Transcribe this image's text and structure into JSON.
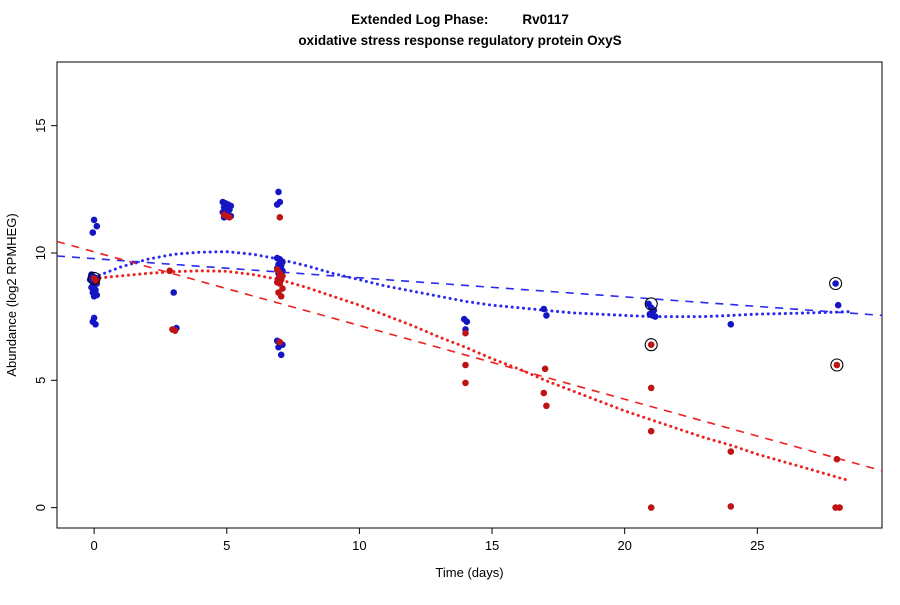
{
  "title": {
    "line1_left": "Extended Log Phase:",
    "line1_right": "Rv0117",
    "line2": "oxidative stress response regulatory protein OxyS"
  },
  "colors": {
    "blue_points": "#1515c4",
    "red_points": "#c01414",
    "blue_line": "#2a2aee",
    "red_line": "#ee2020",
    "outlier_ring": "#000000",
    "axis": "#000000"
  },
  "chart_data": {
    "type": "scatter",
    "title": "Extended Log Phase:  Rv0117",
    "subtitle": "oxidative stress response regulatory protein OxyS",
    "xlabel": "Time  (days)",
    "ylabel": "Abundance  (log2 RPMHEG)",
    "xlim": [
      -1.4,
      29.7
    ],
    "ylim": [
      -0.8,
      17.5
    ],
    "xticks": [
      0,
      5,
      10,
      15,
      20,
      25
    ],
    "yticks": [
      0,
      5,
      10,
      15
    ],
    "grid": false,
    "legend": "none",
    "series": [
      {
        "name": "blue-linear-fit",
        "type": "dashed-line",
        "color": "#2a2aee",
        "points": [
          [
            -1.4,
            9.88
          ],
          [
            29.7,
            7.55
          ]
        ]
      },
      {
        "name": "red-linear-fit",
        "type": "dashed-line",
        "color": "#ee2020",
        "points": [
          [
            -1.4,
            10.45
          ],
          [
            29.7,
            1.45
          ]
        ]
      },
      {
        "name": "blue-smooth-fit",
        "type": "dotted-curve",
        "color": "#2a2aee",
        "points": [
          [
            -0.2,
            8.95
          ],
          [
            0,
            9.05
          ],
          [
            1,
            9.45
          ],
          [
            2,
            9.75
          ],
          [
            3,
            9.95
          ],
          [
            4,
            10.03
          ],
          [
            5,
            10.05
          ],
          [
            6,
            9.95
          ],
          [
            7,
            9.75
          ],
          [
            8,
            9.5
          ],
          [
            9,
            9.2
          ],
          [
            10,
            8.95
          ],
          [
            11,
            8.7
          ],
          [
            12,
            8.5
          ],
          [
            13,
            8.3
          ],
          [
            14,
            8.1
          ],
          [
            15,
            7.95
          ],
          [
            16,
            7.85
          ],
          [
            17,
            7.75
          ],
          [
            18,
            7.65
          ],
          [
            19,
            7.6
          ],
          [
            20,
            7.55
          ],
          [
            21,
            7.5
          ],
          [
            22,
            7.5
          ],
          [
            23,
            7.5
          ],
          [
            24,
            7.55
          ],
          [
            25,
            7.6
          ],
          [
            26,
            7.62
          ],
          [
            27,
            7.65
          ],
          [
            28,
            7.68
          ],
          [
            28.5,
            7.7
          ]
        ]
      },
      {
        "name": "red-smooth-fit",
        "type": "dotted-curve",
        "color": "#ee2020",
        "points": [
          [
            -0.2,
            8.95
          ],
          [
            0,
            9.0
          ],
          [
            1,
            9.1
          ],
          [
            2,
            9.2
          ],
          [
            3,
            9.27
          ],
          [
            4,
            9.3
          ],
          [
            5,
            9.28
          ],
          [
            6,
            9.15
          ],
          [
            7,
            8.95
          ],
          [
            8,
            8.65
          ],
          [
            9,
            8.3
          ],
          [
            10,
            7.95
          ],
          [
            11,
            7.55
          ],
          [
            12,
            7.15
          ],
          [
            13,
            6.7
          ],
          [
            14,
            6.3
          ],
          [
            15,
            5.85
          ],
          [
            16,
            5.45
          ],
          [
            17,
            5.0
          ],
          [
            18,
            4.6
          ],
          [
            19,
            4.2
          ],
          [
            20,
            3.8
          ],
          [
            21,
            3.45
          ],
          [
            22,
            3.1
          ],
          [
            23,
            2.75
          ],
          [
            24,
            2.45
          ],
          [
            25,
            2.1
          ],
          [
            26,
            1.8
          ],
          [
            27,
            1.5
          ],
          [
            28,
            1.2
          ],
          [
            28.5,
            1.05
          ]
        ]
      },
      {
        "name": "blue-points",
        "type": "points",
        "color": "#1515c4",
        "points": [
          [
            0,
            11.3
          ],
          [
            0.1,
            11.05
          ],
          [
            -0.05,
            10.8
          ],
          [
            -0.1,
            9.15
          ],
          [
            0,
            9.05
          ],
          [
            0.1,
            9.0
          ],
          [
            -0.15,
            8.95
          ],
          [
            0.05,
            8.9
          ],
          [
            -0.05,
            8.85
          ],
          [
            0.1,
            8.8
          ],
          [
            0,
            8.75
          ],
          [
            -0.1,
            8.65
          ],
          [
            0.05,
            8.55
          ],
          [
            -0.05,
            8.45
          ],
          [
            0.1,
            8.35
          ],
          [
            0,
            8.3
          ],
          [
            0,
            7.45
          ],
          [
            -0.05,
            7.3
          ],
          [
            0.05,
            7.2
          ],
          [
            3.0,
            8.45
          ],
          [
            3.1,
            7.05
          ],
          [
            4.85,
            12.0
          ],
          [
            4.95,
            11.95
          ],
          [
            5.05,
            11.9
          ],
          [
            5.15,
            11.85
          ],
          [
            4.9,
            11.8
          ],
          [
            5.0,
            11.75
          ],
          [
            5.1,
            11.7
          ],
          [
            4.85,
            11.6
          ],
          [
            4.95,
            11.55
          ],
          [
            5.05,
            11.5
          ],
          [
            5.15,
            11.45
          ],
          [
            4.9,
            11.4
          ],
          [
            6.95,
            12.4
          ],
          [
            7.0,
            12.0
          ],
          [
            6.9,
            11.9
          ],
          [
            6.9,
            9.8
          ],
          [
            7.0,
            9.75
          ],
          [
            7.1,
            9.65
          ],
          [
            6.95,
            9.55
          ],
          [
            7.05,
            9.5
          ],
          [
            6.9,
            9.4
          ],
          [
            7.0,
            9.35
          ],
          [
            7.1,
            9.3
          ],
          [
            6.95,
            9.2
          ],
          [
            6.9,
            6.55
          ],
          [
            7.0,
            6.45
          ],
          [
            7.1,
            6.4
          ],
          [
            6.95,
            6.3
          ],
          [
            7.05,
            6.0
          ],
          [
            13.95,
            7.4
          ],
          [
            14.05,
            7.3
          ],
          [
            14.0,
            7.0
          ],
          [
            16.95,
            7.8
          ],
          [
            17.05,
            7.55
          ],
          [
            20.9,
            8.0
          ],
          [
            21.0,
            7.85
          ],
          [
            21.1,
            7.75
          ],
          [
            20.95,
            7.6
          ],
          [
            21.05,
            7.55
          ],
          [
            21.15,
            7.5
          ],
          [
            24.0,
            7.2
          ],
          [
            27.95,
            8.8
          ],
          [
            28.05,
            7.95
          ]
        ]
      },
      {
        "name": "red-points",
        "type": "points",
        "color": "#c01414",
        "points": [
          [
            0,
            9.0
          ],
          [
            0.1,
            8.9
          ],
          [
            2.85,
            9.3
          ],
          [
            2.95,
            7.0
          ],
          [
            3.05,
            6.95
          ],
          [
            4.9,
            11.5
          ],
          [
            5.0,
            11.45
          ],
          [
            5.1,
            11.4
          ],
          [
            7.0,
            11.4
          ],
          [
            6.9,
            9.35
          ],
          [
            7.0,
            9.2
          ],
          [
            7.1,
            9.1
          ],
          [
            6.95,
            9.0
          ],
          [
            7.05,
            8.95
          ],
          [
            6.9,
            8.85
          ],
          [
            7.0,
            8.8
          ],
          [
            7.1,
            8.6
          ],
          [
            6.95,
            8.45
          ],
          [
            7.05,
            8.3
          ],
          [
            7.0,
            6.5
          ],
          [
            14.0,
            6.85
          ],
          [
            14.0,
            5.6
          ],
          [
            14.0,
            4.9
          ],
          [
            17.0,
            5.45
          ],
          [
            16.95,
            4.5
          ],
          [
            17.05,
            4.0
          ],
          [
            21.0,
            6.4
          ],
          [
            21.0,
            4.7
          ],
          [
            21.0,
            3.0
          ],
          [
            21.0,
            0.0
          ],
          [
            24.0,
            2.2
          ],
          [
            24.0,
            0.05
          ],
          [
            28.0,
            5.6
          ],
          [
            28.0,
            1.9
          ],
          [
            27.95,
            0.0
          ],
          [
            28.1,
            0.0
          ]
        ]
      },
      {
        "name": "outlier-rings",
        "type": "open-circles",
        "color": "#000000",
        "points": [
          [
            0,
            9.0
          ],
          [
            21,
            8.0
          ],
          [
            21,
            6.4
          ],
          [
            27.95,
            8.8
          ],
          [
            28,
            5.6
          ]
        ]
      }
    ]
  }
}
